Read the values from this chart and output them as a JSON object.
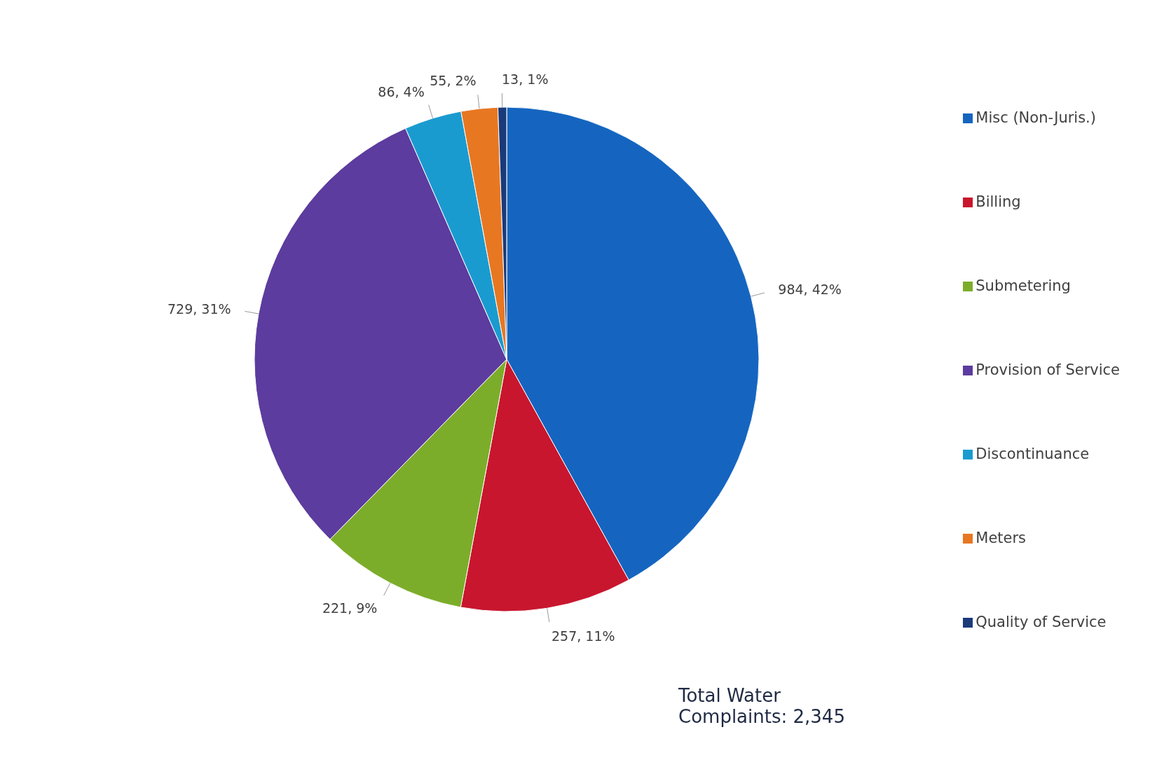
{
  "chart_data": {
    "type": "pie",
    "categories": [
      "Misc (Non-Juris.)",
      "Billing",
      "Submetering",
      "Provision of Service",
      "Discontinuance",
      "Meters",
      "Quality of Service"
    ],
    "values": [
      984,
      257,
      221,
      729,
      86,
      55,
      13
    ],
    "colors": [
      "#1565c0",
      "#c8162e",
      "#7cad2a",
      "#5c3c9e",
      "#1a9bd0",
      "#e87722",
      "#1a3a7a"
    ],
    "value_labels": [
      "984, 42%",
      "257, 11%",
      "221, 9%",
      "729, 31%",
      "86, 4%",
      "55, 2%",
      "13, 1%"
    ],
    "legend": "right",
    "annotations": [
      "Total Water Complaints: 2,345"
    ]
  }
}
